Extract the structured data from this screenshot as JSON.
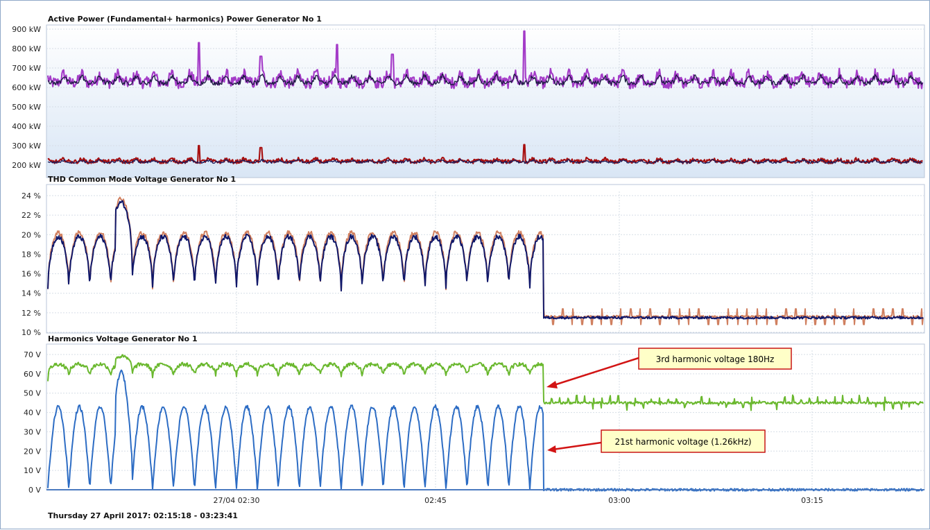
{
  "chart_data": [
    {
      "type": "line",
      "panel": "active-power",
      "title": "Active Power  (Fundamental+ harmonics) Power Generator No 1",
      "ylim": [
        200,
        900
      ],
      "yticks": [
        "900 kW",
        "800 kW",
        "700 kW",
        "600 kW",
        "500 kW",
        "400 kW",
        "300 kW",
        "200 kW"
      ],
      "ytick_values": [
        900,
        800,
        700,
        600,
        500,
        400,
        300,
        200
      ],
      "grid": true,
      "series": [
        {
          "color": "#a43cc8",
          "base": 640,
          "amp": 45,
          "noise": 30,
          "spikes": [
            [
              286,
              830
            ],
            [
              485,
              820
            ],
            [
              755,
              890
            ],
            [
              375,
              760
            ],
            [
              565,
              770
            ]
          ]
        },
        {
          "color": "#1a1a40",
          "base": 635,
          "amp": 35,
          "noise": 12
        },
        {
          "color": "#a81010",
          "base": 222,
          "amp": 12,
          "noise": 10,
          "spikes": [
            [
              286,
              300
            ],
            [
              755,
              305
            ],
            [
              375,
              290
            ]
          ]
        },
        {
          "color": "#1c1c5a",
          "base": 218,
          "amp": 10,
          "noise": 6
        }
      ]
    },
    {
      "type": "line",
      "panel": "thd",
      "title": "THD Common Mode Voltage Generator No 1",
      "ylim": [
        10,
        25
      ],
      "yticks": [
        "24 %",
        "22 %",
        "20 %",
        "18 %",
        "16 %",
        "14 %",
        "12 %",
        "10 %"
      ],
      "ytick_values": [
        24,
        22,
        20,
        18,
        16,
        14,
        12,
        10
      ],
      "grid": true,
      "series": [
        {
          "color": "#d08060",
          "segment1": {
            "high": 20.2,
            "low": 14.2
          },
          "segment2": {
            "level": 11.6,
            "spike_low": 10.8,
            "spike_high": 12.4
          }
        },
        {
          "color": "#10186a",
          "segment1": {
            "high": 19.8,
            "low": 14.2
          },
          "segment2": {
            "level": 11.5
          }
        }
      ],
      "step_x_time": "02:52"
    },
    {
      "type": "line",
      "panel": "harmonics",
      "title": "Harmonics Voltage Generator No 1",
      "ylim": [
        0,
        75
      ],
      "yticks": [
        "70 V",
        "60 V",
        "50 V",
        "40 V",
        "30 V",
        "20 V",
        "10 V",
        "0 V"
      ],
      "ytick_values": [
        70,
        60,
        50,
        40,
        30,
        20,
        10,
        0
      ],
      "grid": true,
      "series": [
        {
          "color": "#6ab82e",
          "segment1": {
            "high": 65,
            "low": 55
          },
          "segment2": {
            "level": 45,
            "spike": 4
          }
        },
        {
          "color": "#2c6cc4",
          "segment1": {
            "high": 43,
            "low": 0
          },
          "segment2": {
            "level": 0
          }
        }
      ],
      "annotations": [
        {
          "text": "3rd harmonic voltage 180Hz"
        },
        {
          "text": "21st harmonic voltage (1.26kHz)"
        }
      ]
    }
  ],
  "x_axis": {
    "ticks": [
      "27/04 02:30",
      "02:45",
      "03:00",
      "03:15"
    ],
    "range_label": "Thursday 27 April 2017: 02:15:18 - 03:23:41"
  }
}
